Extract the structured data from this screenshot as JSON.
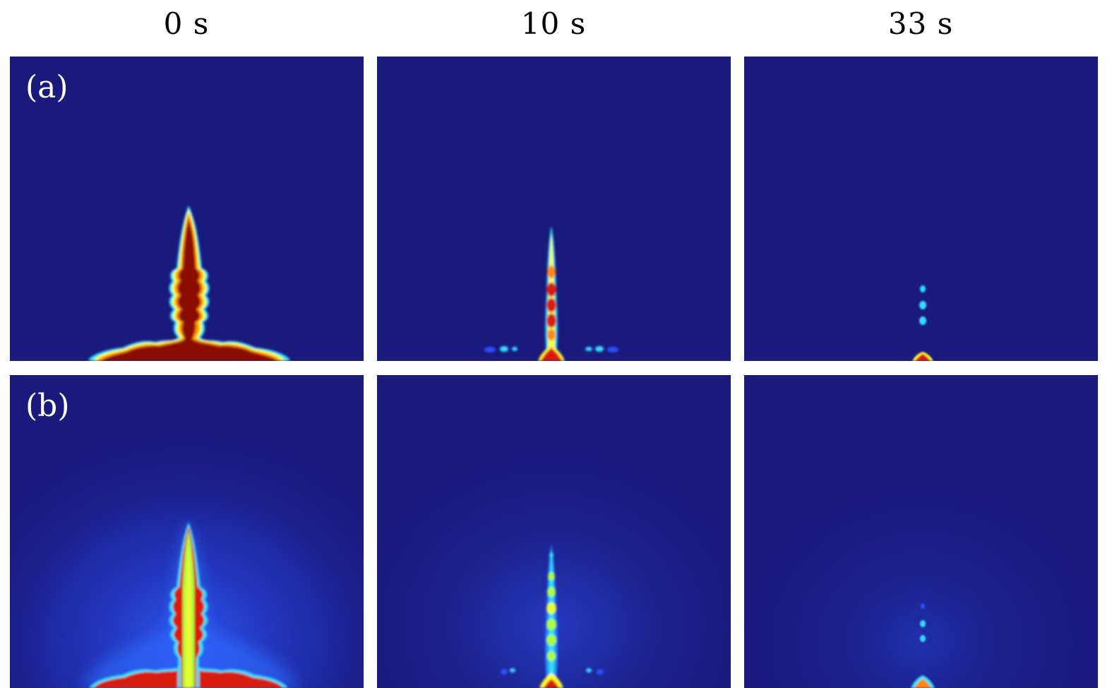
{
  "columns": [
    {
      "time_label": "0 s"
    },
    {
      "time_label": "10 s"
    },
    {
      "time_label": "33 s"
    }
  ],
  "rows": [
    {
      "label": "(a)"
    },
    {
      "label": "(b)"
    }
  ],
  "colors": {
    "background": "#1a1a7d",
    "dark_red": "#8b0a00",
    "red": "#d81a0a",
    "orange": "#ff8a10",
    "yellow": "#ffff30",
    "lime": "#a8ff40",
    "cyan": "#33e0ff",
    "blue": "#2a4fff"
  }
}
